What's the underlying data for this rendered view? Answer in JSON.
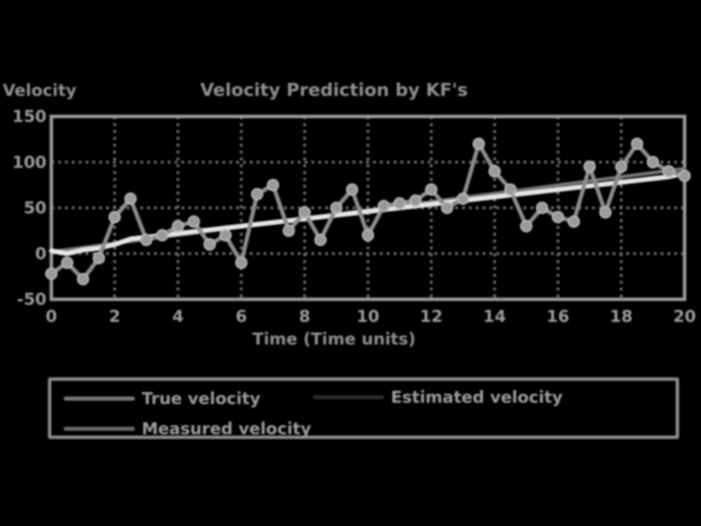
{
  "chart_data": {
    "type": "line",
    "title": "Velocity Prediction by KF's",
    "xlabel": "Time (Time units)",
    "ylabel": "Velocity",
    "xlim": [
      0,
      20
    ],
    "ylim": [
      -50,
      150
    ],
    "x_ticks": [
      "0",
      "2",
      "4",
      "6",
      "8",
      "10",
      "12",
      "14",
      "16",
      "18",
      "20"
    ],
    "y_ticks": [
      "-50",
      "0",
      "50",
      "100",
      "150"
    ],
    "grid": true,
    "legend_position": "below",
    "series": [
      {
        "name": "True velocity",
        "color": "#777777",
        "style": "line",
        "x": [
          0,
          20
        ],
        "y": [
          2,
          93
        ]
      },
      {
        "name": "Estimated velocity",
        "color": "#e6e6e6",
        "style": "line",
        "x": [
          0,
          0.5,
          1,
          1.5,
          2,
          2.5,
          3,
          3.5,
          4,
          4.5,
          5,
          5.5,
          6,
          6.5,
          7,
          7.5,
          8,
          8.5,
          9,
          9.5,
          10,
          10.5,
          11,
          11.5,
          12,
          12.5,
          13,
          13.5,
          14,
          14.5,
          15,
          15.5,
          16,
          16.5,
          17,
          17.5,
          18,
          18.5,
          19,
          19.5,
          20
        ],
        "y": [
          3,
          0,
          4,
          6,
          10,
          16,
          18,
          20,
          22,
          24,
          26,
          28,
          30,
          32,
          34,
          36,
          38,
          40,
          42,
          44,
          46,
          48,
          50,
          52,
          54,
          56,
          58,
          60,
          62,
          64,
          66,
          68,
          70,
          72,
          74,
          76,
          78,
          80,
          82,
          84,
          88
        ]
      },
      {
        "name": "Measured velocity",
        "color": "#8c8c8c",
        "style": "line+markers",
        "x": [
          0,
          0.5,
          1,
          1.5,
          2,
          2.5,
          3,
          3.5,
          4,
          4.5,
          5,
          5.5,
          6,
          6.5,
          7,
          7.5,
          8,
          8.5,
          9,
          9.5,
          10,
          10.5,
          11,
          11.5,
          12,
          12.5,
          13,
          13.5,
          14,
          14.5,
          15,
          15.5,
          16,
          16.5,
          17,
          17.5,
          18,
          18.5,
          19,
          19.5,
          20
        ],
        "y": [
          -22,
          -10,
          -28,
          -5,
          40,
          60,
          15,
          20,
          30,
          35,
          10,
          20,
          -10,
          65,
          75,
          25,
          45,
          15,
          50,
          70,
          20,
          52,
          55,
          58,
          70,
          50,
          60,
          120,
          90,
          70,
          30,
          50,
          40,
          35,
          95,
          45,
          95,
          120,
          100,
          90,
          85
        ]
      }
    ]
  }
}
